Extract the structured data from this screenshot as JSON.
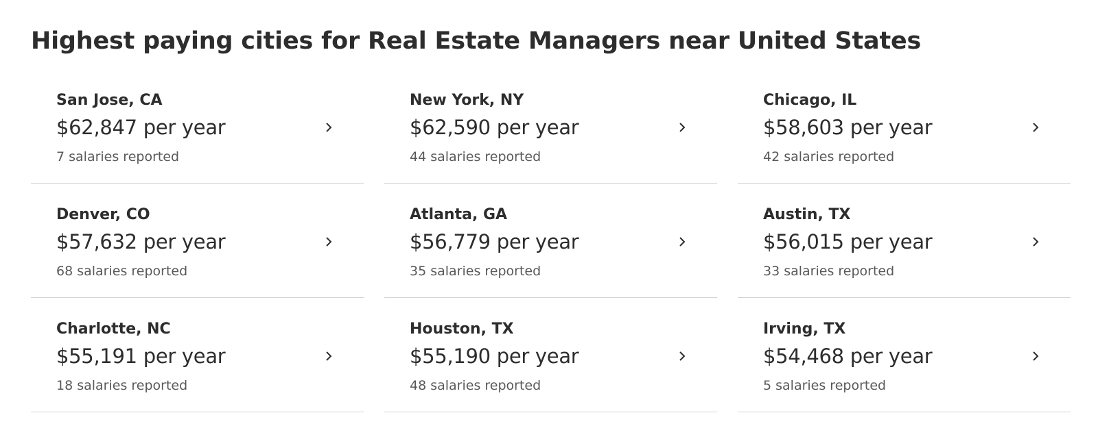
{
  "header": {
    "title": "Highest paying cities for Real Estate Managers near United States"
  },
  "cities": [
    {
      "city": "San Jose, CA",
      "salary": "$62,847 per year",
      "reported": "7 salaries reported"
    },
    {
      "city": "New York, NY",
      "salary": "$62,590 per year",
      "reported": "44 salaries reported"
    },
    {
      "city": "Chicago, IL",
      "salary": "$58,603 per year",
      "reported": "42 salaries reported"
    },
    {
      "city": "Denver, CO",
      "salary": "$57,632 per year",
      "reported": "68 salaries reported"
    },
    {
      "city": "Atlanta, GA",
      "salary": "$56,779 per year",
      "reported": "35 salaries reported"
    },
    {
      "city": "Austin, TX",
      "salary": "$56,015 per year",
      "reported": "33 salaries reported"
    },
    {
      "city": "Charlotte, NC",
      "salary": "$55,191 per year",
      "reported": "18 salaries reported"
    },
    {
      "city": "Houston, TX",
      "salary": "$55,190 per year",
      "reported": "48 salaries reported"
    },
    {
      "city": "Irving, TX",
      "salary": "$54,468 per year",
      "reported": "5 salaries reported"
    }
  ],
  "icons": {
    "card_arrow": "chevron-right-icon"
  },
  "colors": {
    "text_primary": "#2d2d2d",
    "text_secondary": "#595959",
    "divider": "#d4d2d0"
  }
}
